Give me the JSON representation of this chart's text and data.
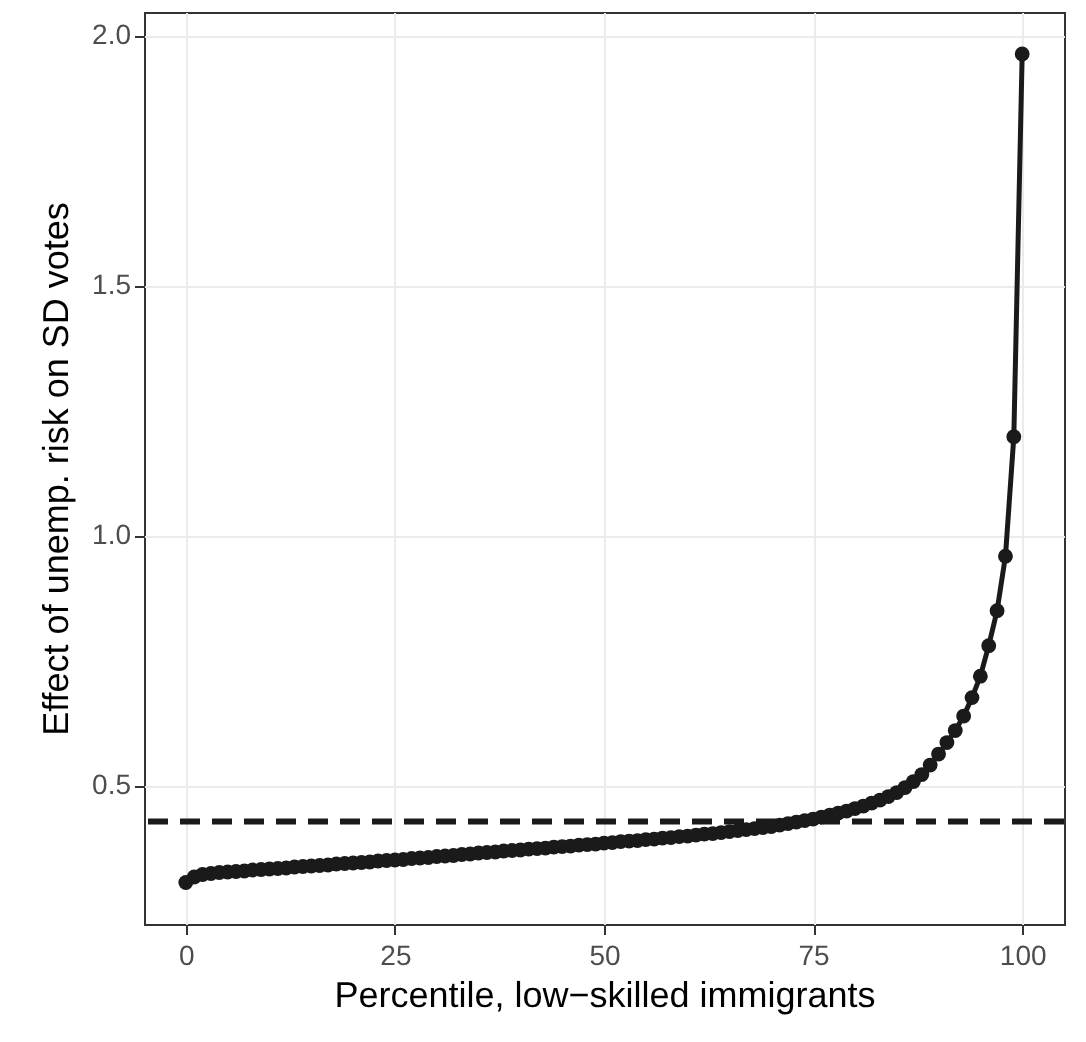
{
  "chart_data": {
    "type": "line",
    "xlabel": "Percentile, low−skilled immigrants",
    "ylabel": "Effect of unemp. risk on SD votes",
    "x": [
      0,
      1,
      2,
      3,
      4,
      5,
      6,
      7,
      8,
      9,
      10,
      11,
      12,
      13,
      14,
      15,
      16,
      17,
      18,
      19,
      20,
      21,
      22,
      23,
      24,
      25,
      26,
      27,
      28,
      29,
      30,
      31,
      32,
      33,
      34,
      35,
      36,
      37,
      38,
      39,
      40,
      41,
      42,
      43,
      44,
      45,
      46,
      47,
      48,
      49,
      50,
      51,
      52,
      53,
      54,
      55,
      56,
      57,
      58,
      59,
      60,
      61,
      62,
      63,
      64,
      65,
      66,
      67,
      68,
      69,
      70,
      71,
      72,
      73,
      74,
      75,
      76,
      77,
      78,
      79,
      80,
      81,
      82,
      83,
      84,
      85,
      86,
      87,
      88,
      89,
      90,
      91,
      92,
      93,
      94,
      95,
      96,
      97,
      98,
      99,
      100
    ],
    "series": [
      {
        "color": "#1a1a1a",
        "values": [
          0.305,
          0.316,
          0.321,
          0.323,
          0.325,
          0.326,
          0.327,
          0.328,
          0.33,
          0.331,
          0.332,
          0.333,
          0.334,
          0.336,
          0.337,
          0.338,
          0.339,
          0.34,
          0.342,
          0.343,
          0.344,
          0.345,
          0.346,
          0.348,
          0.349,
          0.35,
          0.351,
          0.353,
          0.354,
          0.355,
          0.357,
          0.358,
          0.359,
          0.361,
          0.362,
          0.364,
          0.365,
          0.366,
          0.368,
          0.369,
          0.37,
          0.372,
          0.373,
          0.374,
          0.376,
          0.377,
          0.378,
          0.38,
          0.381,
          0.382,
          0.384,
          0.385,
          0.387,
          0.388,
          0.389,
          0.391,
          0.392,
          0.394,
          0.395,
          0.397,
          0.398,
          0.4,
          0.402,
          0.403,
          0.405,
          0.407,
          0.409,
          0.411,
          0.413,
          0.415,
          0.417,
          0.42,
          0.423,
          0.426,
          0.429,
          0.432,
          0.436,
          0.44,
          0.444,
          0.448,
          0.453,
          0.458,
          0.464,
          0.47,
          0.477,
          0.485,
          0.495,
          0.507,
          0.521,
          0.54,
          0.562,
          0.585,
          0.609,
          0.638,
          0.675,
          0.718,
          0.779,
          0.849,
          0.958,
          1.197,
          1.963
        ]
      }
    ],
    "xlim": [
      -5,
      105
    ],
    "xticks": [
      0,
      25,
      50,
      75,
      100
    ],
    "ylim": [
      0.222,
      2.047
    ],
    "yticks": [
      {
        "value": 0.5,
        "label": "0.5"
      },
      {
        "value": 1.0,
        "label": "1.0"
      },
      {
        "value": 1.5,
        "label": "1.5"
      },
      {
        "value": 2.0,
        "label": "2.0"
      }
    ],
    "ref_lines": [
      {
        "axis": "y",
        "value": 0.427,
        "color": "#1a1a1a",
        "line_style": "dashed"
      }
    ],
    "grid": true,
    "marker": "circle",
    "line_style": "solid"
  }
}
